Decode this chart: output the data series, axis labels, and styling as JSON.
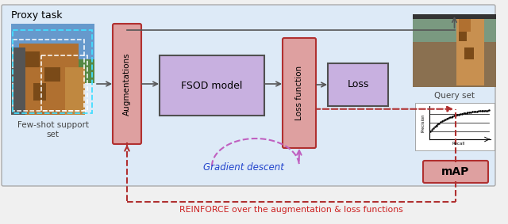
{
  "title": "Proxy task",
  "background_color": "#ddeaf7",
  "outer_bg": "#f0f0f0",
  "fig_width": 6.4,
  "fig_height": 2.83,
  "reinforce_text": "REINFORCE over the augmentation & loss functions",
  "gradient_text": "Gradient descent",
  "fsod_label": "FSOD model",
  "aug_label": "Augmentations",
  "loss_fn_label": "Loss function",
  "loss_label": "Loss",
  "support_label": "Few-shot support\nset",
  "query_label": "Query set",
  "map_label": "mAP",
  "red_color": "#b03030",
  "pink_fill": "#dea0a0",
  "purple_fill": "#c8b0e0",
  "purple_border": "#9060b0",
  "purple_dash": "#c060c0",
  "gray_border": "#505050",
  "blue_text": "#2244cc",
  "red_text": "#cc2020",
  "arrow_gray": "#555555"
}
